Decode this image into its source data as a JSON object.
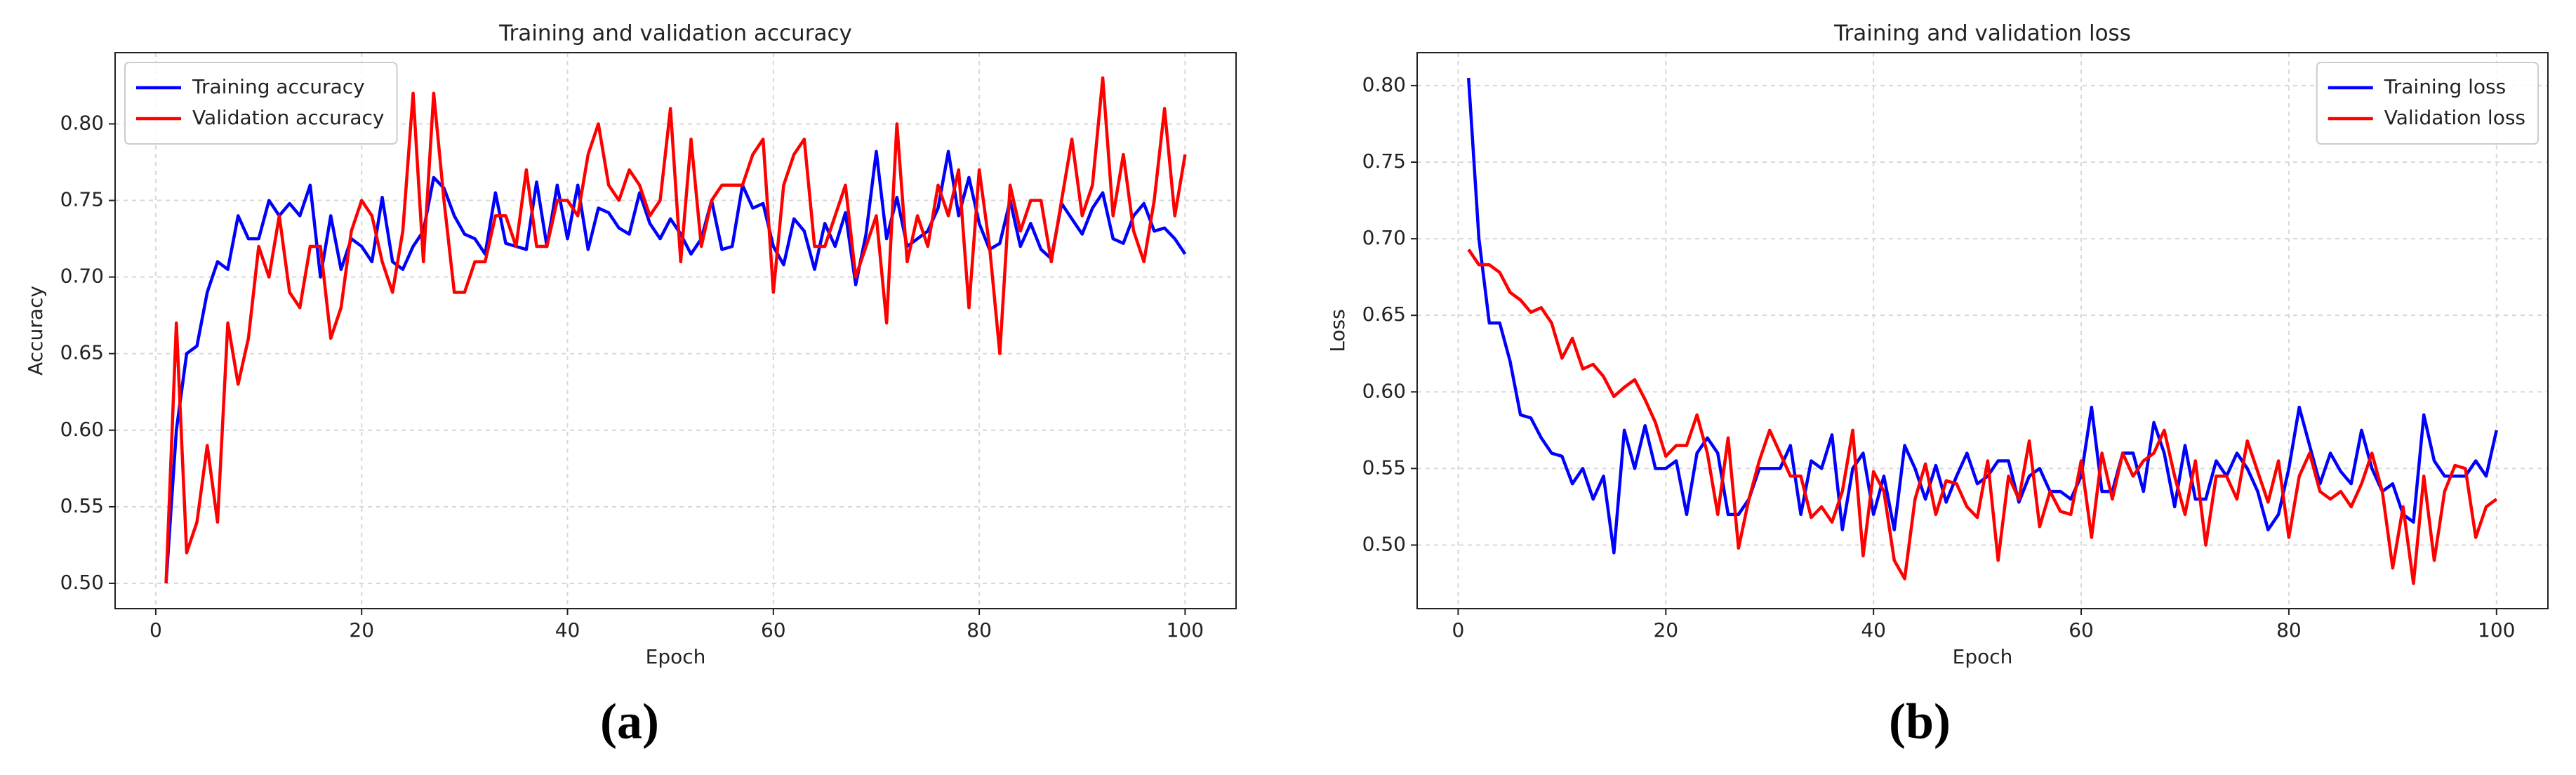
{
  "chart_data": [
    {
      "type": "line",
      "title": "Training and validation accuracy",
      "x_label": "Epoch",
      "y_label": "Accuracy",
      "caption": "(a)",
      "xlim": [
        -3.95,
        104.95
      ],
      "xticks": [
        0,
        20,
        40,
        60,
        80,
        100
      ],
      "ylim": [
        0.4835,
        0.8465
      ],
      "yticks": [
        {
          "value": 0.5,
          "label": "0.50"
        },
        0.55,
        {
          "value": 0.6,
          "label": "0.60"
        },
        0.65,
        {
          "value": 0.7,
          "label": "0.70"
        },
        0.75,
        {
          "value": 0.8,
          "label": "0.80"
        }
      ],
      "grid": true,
      "legend": "upper left",
      "x": [
        1,
        2,
        3,
        4,
        5,
        6,
        7,
        8,
        9,
        10,
        11,
        12,
        13,
        14,
        15,
        16,
        17,
        18,
        19,
        20,
        21,
        22,
        23,
        24,
        25,
        26,
        27,
        28,
        29,
        30,
        31,
        32,
        33,
        34,
        35,
        36,
        37,
        38,
        39,
        40,
        41,
        42,
        43,
        44,
        45,
        46,
        47,
        48,
        49,
        50,
        51,
        52,
        53,
        54,
        55,
        56,
        57,
        58,
        59,
        60,
        61,
        62,
        63,
        64,
        65,
        66,
        67,
        68,
        69,
        70,
        71,
        72,
        73,
        74,
        75,
        76,
        77,
        78,
        79,
        80,
        81,
        82,
        83,
        84,
        85,
        86,
        87,
        88,
        89,
        90,
        91,
        92,
        93,
        94,
        95,
        96,
        97,
        98,
        99,
        100
      ],
      "series": [
        {
          "name": "Training accuracy",
          "color": "#0000ff",
          "values": [
            0.5,
            0.6,
            0.65,
            0.655,
            0.69,
            0.71,
            0.705,
            0.74,
            0.725,
            0.725,
            0.75,
            0.74,
            0.748,
            0.74,
            0.76,
            0.7,
            0.74,
            0.705,
            0.725,
            0.72,
            0.71,
            0.752,
            0.71,
            0.705,
            0.72,
            0.73,
            0.765,
            0.758,
            0.74,
            0.728,
            0.725,
            0.715,
            0.755,
            0.722,
            0.72,
            0.718,
            0.762,
            0.72,
            0.76,
            0.725,
            0.76,
            0.718,
            0.745,
            0.742,
            0.732,
            0.728,
            0.755,
            0.735,
            0.725,
            0.738,
            0.728,
            0.715,
            0.725,
            0.75,
            0.718,
            0.72,
            0.76,
            0.745,
            0.748,
            0.72,
            0.708,
            0.738,
            0.73,
            0.705,
            0.735,
            0.72,
            0.742,
            0.695,
            0.728,
            0.782,
            0.725,
            0.752,
            0.72,
            0.725,
            0.73,
            0.745,
            0.782,
            0.74,
            0.765,
            0.735,
            0.718,
            0.722,
            0.75,
            0.72,
            0.735,
            0.718,
            0.712,
            0.748,
            0.738,
            0.728,
            0.745,
            0.755,
            0.725,
            0.722,
            0.74,
            0.748,
            0.73,
            0.732,
            0.725,
            0.715
          ]
        },
        {
          "name": "Validation accuracy",
          "color": "#ff0000",
          "values": [
            0.5,
            0.67,
            0.52,
            0.54,
            0.59,
            0.54,
            0.67,
            0.63,
            0.66,
            0.72,
            0.7,
            0.74,
            0.69,
            0.68,
            0.72,
            0.72,
            0.66,
            0.68,
            0.73,
            0.75,
            0.74,
            0.71,
            0.69,
            0.73,
            0.82,
            0.71,
            0.82,
            0.75,
            0.69,
            0.69,
            0.71,
            0.71,
            0.74,
            0.74,
            0.72,
            0.77,
            0.72,
            0.72,
            0.75,
            0.75,
            0.74,
            0.78,
            0.8,
            0.76,
            0.75,
            0.77,
            0.76,
            0.74,
            0.75,
            0.81,
            0.71,
            0.79,
            0.72,
            0.75,
            0.76,
            0.76,
            0.76,
            0.78,
            0.79,
            0.69,
            0.76,
            0.78,
            0.79,
            0.72,
            0.72,
            0.74,
            0.76,
            0.7,
            0.72,
            0.74,
            0.67,
            0.8,
            0.71,
            0.74,
            0.72,
            0.76,
            0.74,
            0.77,
            0.68,
            0.77,
            0.72,
            0.65,
            0.76,
            0.73,
            0.75,
            0.75,
            0.71,
            0.75,
            0.79,
            0.74,
            0.76,
            0.83,
            0.74,
            0.78,
            0.73,
            0.71,
            0.75,
            0.81,
            0.74,
            0.78
          ]
        }
      ]
    },
    {
      "type": "line",
      "title": "Training and validation loss",
      "x_label": "Epoch",
      "y_label": "Loss",
      "caption": "(b)",
      "xlim": [
        -3.95,
        104.95
      ],
      "xticks": [
        0,
        20,
        40,
        60,
        80,
        100
      ],
      "ylim": [
        0.4585,
        0.8215
      ],
      "yticks": [
        {
          "value": 0.5,
          "label": "0.50"
        },
        0.55,
        {
          "value": 0.6,
          "label": "0.60"
        },
        0.65,
        {
          "value": 0.7,
          "label": "0.70"
        },
        0.75,
        {
          "value": 0.8,
          "label": "0.80"
        }
      ],
      "grid": true,
      "legend": "upper right",
      "x": [
        1,
        2,
        3,
        4,
        5,
        6,
        7,
        8,
        9,
        10,
        11,
        12,
        13,
        14,
        15,
        16,
        17,
        18,
        19,
        20,
        21,
        22,
        23,
        24,
        25,
        26,
        27,
        28,
        29,
        30,
        31,
        32,
        33,
        34,
        35,
        36,
        37,
        38,
        39,
        40,
        41,
        42,
        43,
        44,
        45,
        46,
        47,
        48,
        49,
        50,
        51,
        52,
        53,
        54,
        55,
        56,
        57,
        58,
        59,
        60,
        61,
        62,
        63,
        64,
        65,
        66,
        67,
        68,
        69,
        70,
        71,
        72,
        73,
        74,
        75,
        76,
        77,
        78,
        79,
        80,
        81,
        82,
        83,
        84,
        85,
        86,
        87,
        88,
        89,
        90,
        91,
        92,
        93,
        94,
        95,
        96,
        97,
        98,
        99,
        100
      ],
      "series": [
        {
          "name": "Training loss",
          "color": "#0000ff",
          "values": [
            0.805,
            0.7,
            0.645,
            0.645,
            0.62,
            0.585,
            0.583,
            0.57,
            0.56,
            0.558,
            0.54,
            0.55,
            0.53,
            0.545,
            0.495,
            0.575,
            0.55,
            0.578,
            0.55,
            0.55,
            0.555,
            0.52,
            0.56,
            0.57,
            0.56,
            0.52,
            0.52,
            0.53,
            0.55,
            0.55,
            0.55,
            0.565,
            0.52,
            0.555,
            0.55,
            0.572,
            0.51,
            0.55,
            0.56,
            0.52,
            0.545,
            0.51,
            0.565,
            0.55,
            0.53,
            0.552,
            0.528,
            0.545,
            0.56,
            0.54,
            0.545,
            0.555,
            0.555,
            0.528,
            0.545,
            0.55,
            0.535,
            0.535,
            0.53,
            0.545,
            0.59,
            0.535,
            0.535,
            0.56,
            0.56,
            0.535,
            0.58,
            0.56,
            0.525,
            0.565,
            0.53,
            0.53,
            0.555,
            0.545,
            0.56,
            0.55,
            0.535,
            0.51,
            0.52,
            0.55,
            0.59,
            0.565,
            0.54,
            0.56,
            0.548,
            0.54,
            0.575,
            0.55,
            0.535,
            0.54,
            0.52,
            0.515,
            0.585,
            0.555,
            0.545,
            0.545,
            0.545,
            0.555,
            0.545,
            0.575
          ]
        },
        {
          "name": "Validation loss",
          "color": "#ff0000",
          "values": [
            0.693,
            0.683,
            0.683,
            0.678,
            0.665,
            0.66,
            0.652,
            0.655,
            0.645,
            0.622,
            0.635,
            0.615,
            0.618,
            0.61,
            0.597,
            0.603,
            0.608,
            0.595,
            0.58,
            0.558,
            0.565,
            0.565,
            0.585,
            0.56,
            0.52,
            0.57,
            0.498,
            0.53,
            0.555,
            0.575,
            0.56,
            0.545,
            0.545,
            0.518,
            0.525,
            0.515,
            0.535,
            0.575,
            0.493,
            0.548,
            0.535,
            0.49,
            0.478,
            0.53,
            0.553,
            0.52,
            0.542,
            0.54,
            0.525,
            0.518,
            0.555,
            0.49,
            0.545,
            0.53,
            0.568,
            0.512,
            0.535,
            0.522,
            0.52,
            0.555,
            0.505,
            0.56,
            0.53,
            0.56,
            0.545,
            0.555,
            0.56,
            0.575,
            0.545,
            0.52,
            0.555,
            0.5,
            0.545,
            0.545,
            0.53,
            0.568,
            0.548,
            0.528,
            0.555,
            0.505,
            0.545,
            0.56,
            0.535,
            0.53,
            0.535,
            0.525,
            0.54,
            0.56,
            0.535,
            0.485,
            0.525,
            0.475,
            0.545,
            0.49,
            0.535,
            0.552,
            0.55,
            0.505,
            0.525,
            0.53
          ]
        }
      ]
    }
  ]
}
